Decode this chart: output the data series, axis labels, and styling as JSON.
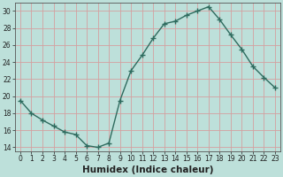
{
  "x": [
    0,
    1,
    2,
    3,
    4,
    5,
    6,
    7,
    8,
    9,
    10,
    11,
    12,
    13,
    14,
    15,
    16,
    17,
    18,
    19,
    20,
    21,
    22,
    23
  ],
  "y": [
    19.5,
    18.0,
    17.2,
    16.5,
    15.8,
    15.5,
    14.2,
    14.0,
    14.5,
    19.5,
    23.0,
    24.8,
    26.8,
    28.5,
    28.8,
    29.5,
    30.0,
    30.5,
    29.0,
    27.2,
    25.5,
    23.5,
    22.2,
    21.0
  ],
  "line_color": "#2e6b5e",
  "bg_color": "#bde0da",
  "grid_color": "#d4a0a0",
  "xlabel": "Humidex (Indice chaleur)",
  "ylim": [
    13.5,
    31
  ],
  "yticks": [
    14,
    16,
    18,
    20,
    22,
    24,
    26,
    28,
    30
  ],
  "xticks": [
    0,
    1,
    2,
    3,
    4,
    5,
    6,
    7,
    8,
    9,
    10,
    11,
    12,
    13,
    14,
    15,
    16,
    17,
    18,
    19,
    20,
    21,
    22,
    23
  ],
  "marker": "+",
  "linewidth": 1.0,
  "markersize": 4,
  "markeredgewidth": 1.0,
  "font_color": "#222222",
  "xlabel_fontsize": 7.5,
  "tick_fontsize": 5.5,
  "xlabel_fontweight": "bold"
}
